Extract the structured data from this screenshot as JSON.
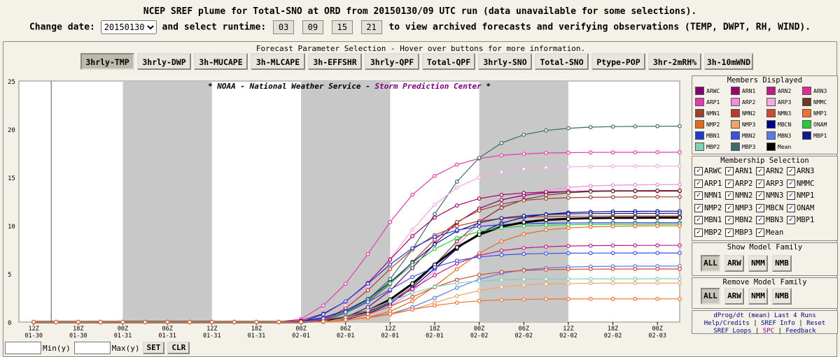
{
  "header": {
    "line1": "NCEP SREF plume for Total-SNO at ORD from 20150130/09 UTC run (data unavailable for some selections).",
    "change_date_label": "Change date:",
    "date_value": "20150130",
    "select_runtime_label": "and select runtime:",
    "runtimes": [
      "03",
      "09",
      "15",
      "21"
    ],
    "runtime_suffix": "to view archived forecasts and verifying observations (TEMP, DWPT, RH, WIND)."
  },
  "params": {
    "title": "Forecast Parameter Selection - Hover over buttons for more information.",
    "buttons": [
      "3hrly-TMP",
      "3hrly-DWP",
      "3h-MUCAPE",
      "3h-MLCAPE",
      "3h-EFFSHR",
      "3hrly-QPF",
      "Total-QPF",
      "3hrly-SNO",
      "Total-SNO",
      "Ptype-POP",
      "3hr-2mRH%",
      "3h-10mWND"
    ],
    "active": "3hrly-TMP"
  },
  "chart_data": {
    "type": "line",
    "title": "* NOAA - National Weather Service - Storm Prediction Center *",
    "title_parts": [
      "* ",
      "NOAA - National Weather Service",
      " - ",
      "Storm Prediction Center",
      " *"
    ],
    "ylim": [
      0,
      25
    ],
    "yticks": [
      0,
      5,
      10,
      15,
      20,
      25
    ],
    "xrange": [
      -2,
      87
    ],
    "x_tick_hours": [
      0,
      6,
      12,
      18,
      24,
      30,
      36,
      42,
      48,
      54,
      60,
      66,
      72,
      78,
      84
    ],
    "x_tick_labels": [
      [
        "12Z",
        "01-30"
      ],
      [
        "18Z",
        "01-30"
      ],
      [
        "00Z",
        "01-31"
      ],
      [
        "06Z",
        "01-31"
      ],
      [
        "12Z",
        "01-31"
      ],
      [
        "18Z",
        "01-31"
      ],
      [
        "00Z",
        "02-01"
      ],
      [
        "06Z",
        "02-01"
      ],
      [
        "12Z",
        "02-01"
      ],
      [
        "18Z",
        "02-01"
      ],
      [
        "00Z",
        "02-02"
      ],
      [
        "06Z",
        "02-02"
      ],
      [
        "12Z",
        "02-02"
      ],
      [
        "18Z",
        "02-02"
      ],
      [
        "00Z",
        "02-03"
      ]
    ],
    "night_bands": [
      [
        12,
        24
      ],
      [
        36,
        48
      ],
      [
        60,
        72
      ]
    ],
    "x_hours": [
      0,
      3,
      6,
      9,
      12,
      15,
      18,
      21,
      24,
      27,
      30,
      33,
      36,
      39,
      42,
      45,
      48,
      51,
      54,
      57,
      60,
      63,
      66,
      69,
      72,
      75,
      78,
      81,
      84,
      87
    ],
    "series": [
      {
        "name": "ARP1",
        "color": "#e23bb0",
        "final": 18.9
      },
      {
        "name": "MBP3",
        "color": "#3d6a6a",
        "final": 20.7
      },
      {
        "name": "ARP3",
        "color": "#f4a8e4",
        "final": 17.2
      },
      {
        "name": "ARP2",
        "color": "#f08cd8",
        "final": 14.5
      },
      {
        "name": "ARWC",
        "color": "#800070",
        "final": 14.4
      },
      {
        "name": "ARN1",
        "color": "#a0006a",
        "final": 14.2
      },
      {
        "name": "NMMC",
        "color": "#6a3a22",
        "final": 13.8
      },
      {
        "name": "NMN1",
        "color": "#a0402a",
        "final": 13.5
      },
      {
        "name": "NMN2",
        "color": "#b83a2a",
        "final": 12.5
      },
      {
        "name": "MBCN",
        "color": "#000090",
        "final": 11.9
      },
      {
        "name": "MBP1",
        "color": "#0a1a8a",
        "final": 11.6
      },
      {
        "name": "MBN1",
        "color": "#1e3ad0",
        "final": 11.3
      },
      {
        "name": "Mean",
        "color": "#000000",
        "final": 11.1
      },
      {
        "name": "ONAM",
        "color": "#2ac83a",
        "final": 11.0
      },
      {
        "name": "NMP2",
        "color": "#e66a1e",
        "final": 10.2
      },
      {
        "name": "ARN2",
        "color": "#c0188a",
        "final": 8.1
      },
      {
        "name": "MBN2",
        "color": "#3b50e8",
        "final": 7.6
      },
      {
        "name": "MBN3",
        "color": "#5a7ae8",
        "final": 5.9
      },
      {
        "name": "NMN3",
        "color": "#d04a30",
        "final": 5.8
      },
      {
        "name": "MBP2",
        "color": "#7ed0b8",
        "final": 5.3
      },
      {
        "name": "NMP3",
        "color": "#f0a46a",
        "final": 4.1
      },
      {
        "name": "NMP1",
        "color": "#f07030",
        "final": 2.5
      }
    ]
  },
  "members_displayed": {
    "title": "Members Displayed",
    "items": [
      {
        "label": "ARWC",
        "color": "#800070"
      },
      {
        "label": "ARN1",
        "color": "#a0006a"
      },
      {
        "label": "ARN2",
        "color": "#c0188a"
      },
      {
        "label": "ARN3",
        "color": "#e22b9a"
      },
      {
        "label": "ARP1",
        "color": "#e23bb0"
      },
      {
        "label": "ARP2",
        "color": "#f08cd8"
      },
      {
        "label": "ARP3",
        "color": "#f4a8e4"
      },
      {
        "label": "NMMC",
        "color": "#6a3a22"
      },
      {
        "label": "NMN1",
        "color": "#a0402a"
      },
      {
        "label": "NMN2",
        "color": "#b83a2a"
      },
      {
        "label": "NMN3",
        "color": "#d04a30"
      },
      {
        "label": "NMP1",
        "color": "#f07030"
      },
      {
        "label": "NMP2",
        "color": "#e66a1e"
      },
      {
        "label": "NMP3",
        "color": "#f0a46a"
      },
      {
        "label": "MBCN",
        "color": "#000090"
      },
      {
        "label": "ONAM",
        "color": "#2ac83a"
      },
      {
        "label": "MBN1",
        "color": "#1e3ad0"
      },
      {
        "label": "MBN2",
        "color": "#3b50e8"
      },
      {
        "label": "MBN3",
        "color": "#5a7ae8"
      },
      {
        "label": "MBP1",
        "color": "#0a1a8a"
      },
      {
        "label": "MBP2",
        "color": "#7ed0b8"
      },
      {
        "label": "MBP3",
        "color": "#3d6a6a"
      },
      {
        "label": "Mean",
        "color": "#000000"
      }
    ]
  },
  "membership_selection": {
    "title": "Membership Selection",
    "items": [
      "ARWC",
      "ARN1",
      "ARN2",
      "ARN3",
      "ARP1",
      "ARP2",
      "ARP3",
      "NMMC",
      "NMN1",
      "NMN2",
      "NMN3",
      "NMP1",
      "NMP2",
      "NMP3",
      "MBCN",
      "ONAM",
      "MBN1",
      "MBN2",
      "MBN3",
      "MBP1",
      "MBP2",
      "MBP3",
      "Mean"
    ]
  },
  "show_family": {
    "title": "Show Model Family",
    "buttons": [
      "ALL",
      "ARW",
      "NMM",
      "NMB"
    ]
  },
  "remove_family": {
    "title": "Remove Model Family",
    "buttons": [
      "ALL",
      "ARW",
      "NMM",
      "NMB"
    ]
  },
  "info": {
    "line1": "dProg/dt (mean) Last 4 Runs",
    "line2": [
      "Help/Credits",
      "SREF Info",
      "Reset"
    ],
    "line3": [
      "SREF Loops",
      "SPC",
      "Feedback"
    ]
  },
  "bottom": {
    "min_label": "Min(y)",
    "max_label": "Max(y)",
    "set": "SET",
    "clr": "CLR"
  }
}
